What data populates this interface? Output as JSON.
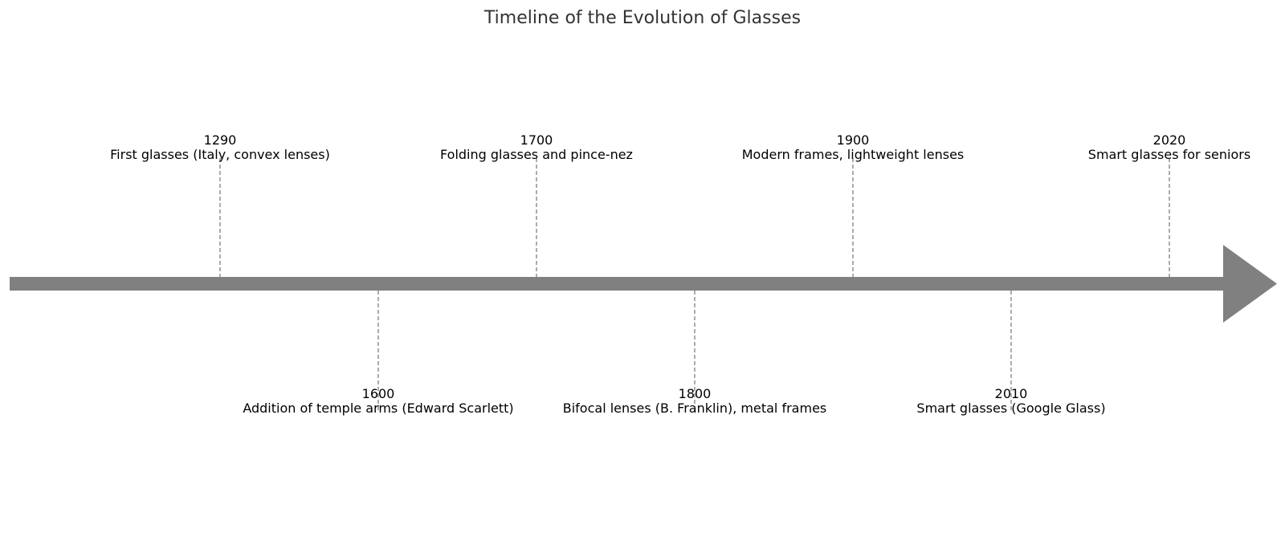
{
  "title": "Timeline of the Evolution of Glasses",
  "colors": {
    "axis": "#808080",
    "connector": "#808080",
    "text": "#000000",
    "title": "#333333",
    "background": "#ffffff"
  },
  "events": [
    {
      "year": "1290",
      "description": "First glasses (Italy, convex lenses)",
      "side": "above"
    },
    {
      "year": "1600",
      "description": "Addition of temple arms (Edward Scarlett)",
      "side": "below"
    },
    {
      "year": "1700",
      "description": "Folding glasses and pince-nez",
      "side": "above"
    },
    {
      "year": "1800",
      "description": "Bifocal lenses (B. Franklin), metal frames",
      "side": "below"
    },
    {
      "year": "1900",
      "description": "Modern frames, lightweight lenses",
      "side": "above"
    },
    {
      "year": "2010",
      "description": "Smart glasses (Google Glass)",
      "side": "below"
    },
    {
      "year": "2020",
      "description": "Smart glasses for seniors",
      "side": "above"
    }
  ]
}
